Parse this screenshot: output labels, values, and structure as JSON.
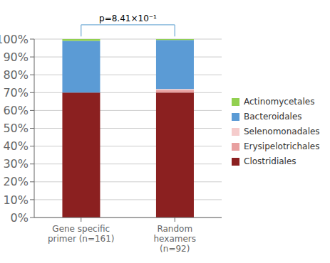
{
  "chart_data": {
    "type": "bar",
    "stacked": true,
    "categories": [
      "Gene specific\nprimer (n=161)",
      "Random\nhexamers\n(n=92)"
    ],
    "series": [
      {
        "name": "Clostridiales",
        "color": "#8B2020",
        "values": [
          70.0,
          70.0
        ]
      },
      {
        "name": "Erysipelotrichales",
        "color": "#E8A0A0",
        "values": [
          0.0,
          1.5
        ]
      },
      {
        "name": "Selenomonadales",
        "color": "#F5CCCC",
        "values": [
          0.0,
          0.5
        ]
      },
      {
        "name": "Bacteroidales",
        "color": "#5B9BD5",
        "values": [
          29.0,
          27.5
        ]
      },
      {
        "name": "Actinomycetales",
        "color": "#92D050",
        "values": [
          1.0,
          0.5
        ]
      }
    ],
    "ylim": [
      0,
      100
    ],
    "yticks": [
      {
        "value": 0,
        "label": "0%"
      },
      {
        "value": 10,
        "label": "10%"
      },
      {
        "value": 20,
        "label": "20%"
      },
      {
        "value": 30,
        "label": "30%"
      },
      {
        "value": 40,
        "label": "40%"
      },
      {
        "value": 50,
        "label": "50%"
      },
      {
        "value": 60,
        "label": "60%"
      },
      {
        "value": 70,
        "label": "70%"
      },
      {
        "value": 80,
        "label": "80%"
      },
      {
        "value": 90,
        "label": "90%"
      },
      {
        "value": 100,
        "label": "100%"
      }
    ],
    "grid": true,
    "legend": "right",
    "annotations": [
      "p=8.41×10⁻¹"
    ]
  }
}
